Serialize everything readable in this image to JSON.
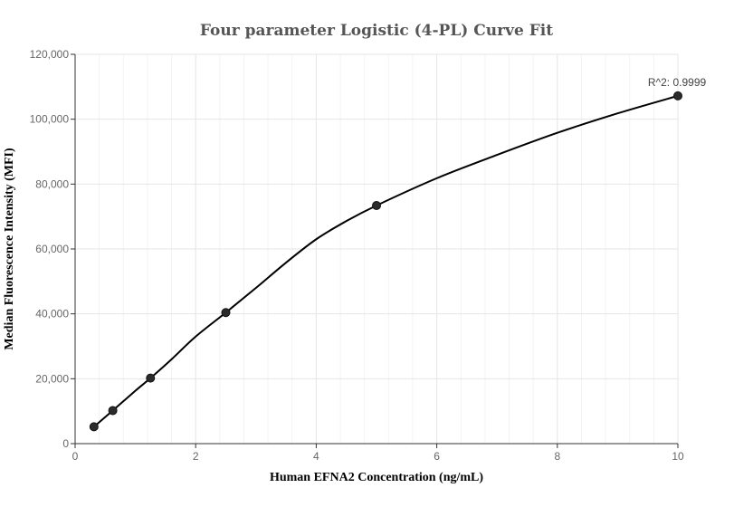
{
  "chart_data": {
    "type": "scatter",
    "title": "Four parameter Logistic (4-PL) Curve Fit",
    "xlabel": "Human EFNA2 Concentration (ng/mL)",
    "ylabel": "Median Fluorescence Intensity (MFI)",
    "xlim": [
      0,
      10
    ],
    "ylim": [
      0,
      120000
    ],
    "x_ticks": [
      0,
      2,
      4,
      6,
      8,
      10
    ],
    "x_tick_labels": [
      "0",
      "2",
      "4",
      "6",
      "8",
      "10"
    ],
    "y_ticks": [
      0,
      20000,
      40000,
      60000,
      80000,
      100000,
      120000
    ],
    "y_tick_labels": [
      "0",
      "20,000",
      "40,000",
      "60,000",
      "80,000",
      "100,000",
      "120,000"
    ],
    "grid": true,
    "points": [
      {
        "x": 0.3125,
        "y": 5200
      },
      {
        "x": 0.625,
        "y": 10200
      },
      {
        "x": 1.25,
        "y": 20200
      },
      {
        "x": 2.5,
        "y": 40400
      },
      {
        "x": 5,
        "y": 73400
      },
      {
        "x": 10,
        "y": 107200
      }
    ],
    "fit_curve": [
      {
        "x": 0.3125,
        "y": 5200
      },
      {
        "x": 0.625,
        "y": 10200
      },
      {
        "x": 1.0,
        "y": 16300
      },
      {
        "x": 1.25,
        "y": 20200
      },
      {
        "x": 1.6,
        "y": 26000
      },
      {
        "x": 2.0,
        "y": 33000
      },
      {
        "x": 2.5,
        "y": 40400
      },
      {
        "x": 3.0,
        "y": 48000
      },
      {
        "x": 3.5,
        "y": 55800
      },
      {
        "x": 4.0,
        "y": 63000
      },
      {
        "x": 4.5,
        "y": 68600
      },
      {
        "x": 5.0,
        "y": 73400
      },
      {
        "x": 6.0,
        "y": 81800
      },
      {
        "x": 7.0,
        "y": 89000
      },
      {
        "x": 8.0,
        "y": 95800
      },
      {
        "x": 9.0,
        "y": 101800
      },
      {
        "x": 10.0,
        "y": 107200
      }
    ],
    "annotation": {
      "text": "R^2: 0.9999",
      "x": 10,
      "y": 107200
    }
  }
}
